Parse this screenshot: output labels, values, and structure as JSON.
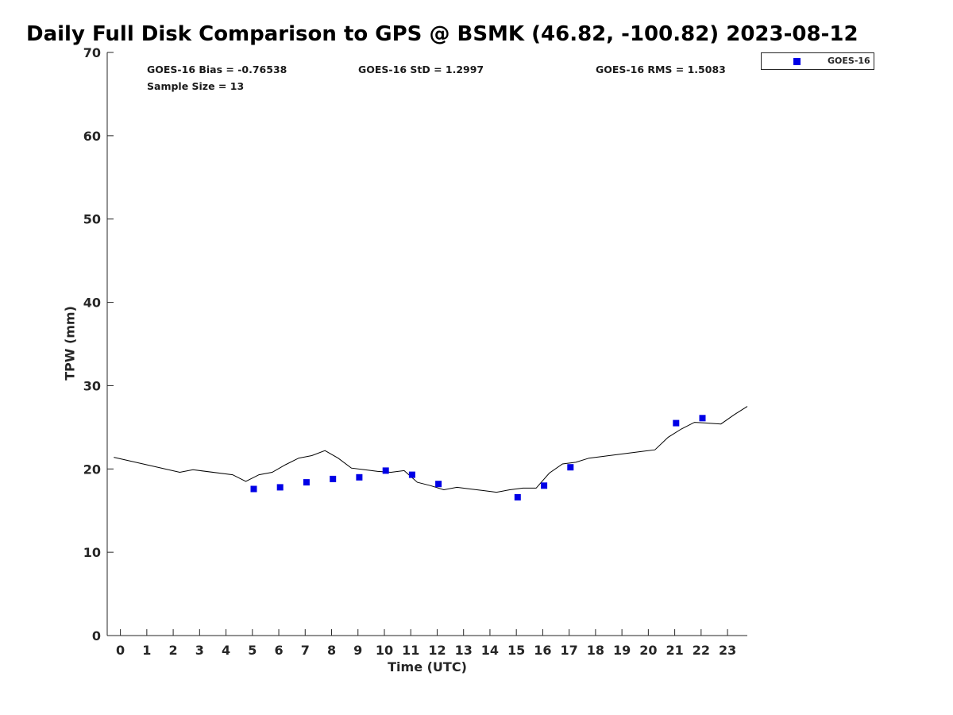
{
  "title": "Daily Full Disk Comparison to GPS @ BSMK (46.82, -100.82) 2023-08-12",
  "stats": {
    "bias": "GOES-16 Bias = -0.76538",
    "std": "GOES-16 StD = 1.2997",
    "rms": "GOES-16 RMS = 1.5083",
    "sample_size": "Sample Size = 13"
  },
  "legend": {
    "label": "GOES-16",
    "color": "#0000e6"
  },
  "colors": {
    "marker": "#0000e6",
    "line": "#000000",
    "axis": "#262626"
  },
  "chart_data": {
    "type": "line+scatter",
    "title": "Daily Full Disk Comparison to GPS @ BSMK (46.82, -100.82) 2023-08-12",
    "xlabel": "Time (UTC)",
    "ylabel": "TPW (mm)",
    "xlim": [
      -0.5,
      23.75
    ],
    "ylim": [
      0,
      70
    ],
    "xticks": [
      0,
      1,
      2,
      3,
      4,
      5,
      6,
      7,
      8,
      9,
      10,
      11,
      12,
      13,
      14,
      15,
      16,
      17,
      18,
      19,
      20,
      21,
      22,
      23
    ],
    "yticks": [
      0,
      10,
      20,
      30,
      40,
      50,
      60,
      70
    ],
    "grid": false,
    "legend_position": "outside-top-right",
    "series": [
      {
        "type": "line",
        "x": [
          -0.25,
          2.25,
          2.75,
          4.25,
          4.75,
          5.25,
          5.75,
          6.25,
          6.75,
          7.25,
          7.75,
          8.25,
          8.75,
          9.25,
          9.75,
          10.25,
          10.75,
          11.25,
          11.75,
          12.25,
          12.75,
          13.25,
          13.75,
          14.25,
          14.75,
          15.25,
          15.75,
          16.25,
          16.75,
          17.25,
          17.75,
          18.25,
          18.75,
          19.25,
          19.75,
          20.25,
          20.75,
          21.25,
          21.75,
          22.25,
          22.75,
          23.25,
          23.75
        ],
        "y": [
          21.4,
          19.6,
          19.9,
          19.3,
          18.5,
          19.3,
          19.6,
          20.5,
          21.3,
          21.6,
          22.2,
          21.3,
          20.1,
          19.9,
          19.7,
          19.6,
          19.8,
          18.4,
          18.0,
          17.5,
          17.8,
          17.6,
          17.4,
          17.2,
          17.5,
          17.7,
          17.7,
          19.5,
          20.6,
          20.8,
          21.3,
          21.5,
          21.7,
          21.9,
          22.1,
          22.3,
          23.8,
          24.8,
          25.6,
          25.5,
          25.4,
          26.5,
          27.5
        ]
      },
      {
        "name": "GOES-16",
        "type": "scatter",
        "x": [
          5.05,
          6.05,
          7.05,
          8.05,
          9.05,
          10.05,
          11.05,
          12.05,
          15.05,
          16.05,
          17.05,
          21.05,
          22.05
        ],
        "y": [
          17.6,
          17.8,
          18.4,
          18.8,
          19.0,
          19.8,
          19.3,
          18.2,
          16.6,
          18.0,
          20.2,
          25.5,
          26.1
        ]
      }
    ]
  }
}
